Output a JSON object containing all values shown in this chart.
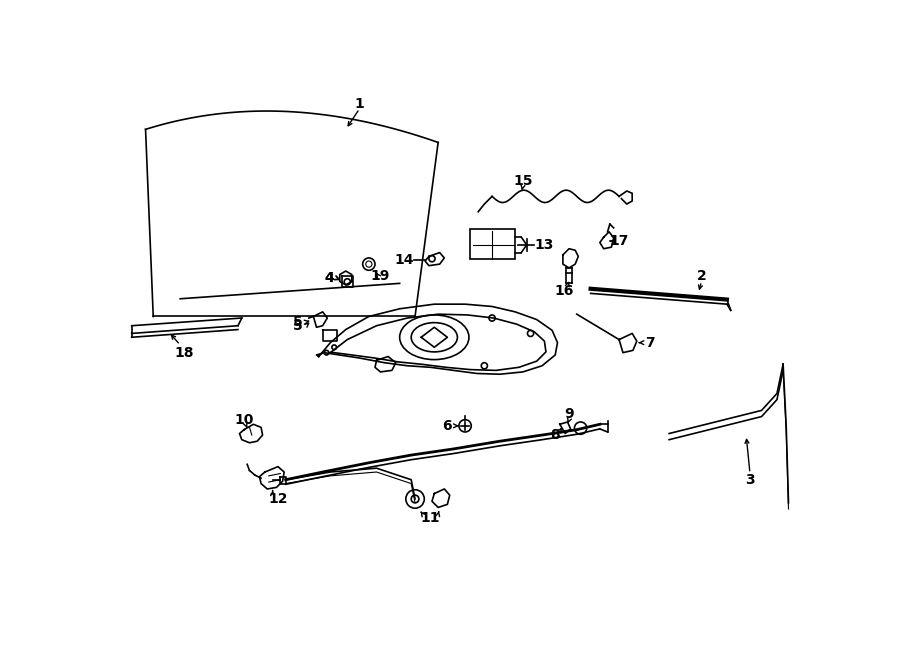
{
  "bg": "#ffffff",
  "lc": "#000000",
  "lw": 1.2,
  "fig_w": 9.0,
  "fig_h": 6.61,
  "dpi": 100
}
